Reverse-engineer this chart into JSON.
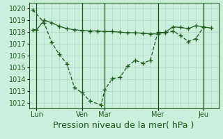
{
  "background_color": "#cceedd",
  "line_color": "#1a5c1a",
  "xlabel": "Pression niveau de la mer( hPa )",
  "xlabel_fontsize": 9,
  "ylim": [
    1011.5,
    1020.5
  ],
  "yticks": [
    1012,
    1013,
    1014,
    1015,
    1016,
    1017,
    1018,
    1019,
    1020
  ],
  "xlim": [
    0,
    25
  ],
  "xtick_labels": [
    "Lun",
    "Ven",
    "Mar",
    "Mer",
    "Jeu"
  ],
  "xtick_positions": [
    1,
    7,
    10,
    17,
    23
  ],
  "vline_positions": [
    1,
    7,
    10,
    17,
    23
  ],
  "line1_x": [
    0.5,
    2,
    3,
    4,
    5,
    6,
    7,
    8,
    9.5,
    10,
    11,
    12,
    13,
    14,
    15,
    16,
    17,
    18,
    19,
    20,
    21,
    22,
    23
  ],
  "line1_y": [
    1019.9,
    1018.8,
    1017.1,
    1016.1,
    1015.3,
    1013.25,
    1012.85,
    1012.15,
    1011.8,
    1013.1,
    1014.05,
    1014.15,
    1015.1,
    1015.6,
    1015.35,
    1015.6,
    1018.0,
    1017.95,
    1018.1,
    1017.7,
    1017.2,
    1017.45,
    1018.4
  ],
  "line2_x": [
    0.5,
    1,
    2,
    3,
    4,
    5,
    6,
    7,
    8,
    9,
    10,
    11,
    12,
    13,
    14,
    15,
    16,
    17,
    18,
    19,
    20,
    21,
    22,
    23,
    24
  ],
  "line2_y": [
    1018.2,
    1018.2,
    1019.0,
    1018.8,
    1018.5,
    1018.3,
    1018.2,
    1018.15,
    1018.1,
    1018.1,
    1018.05,
    1018.05,
    1018.0,
    1017.95,
    1017.95,
    1017.9,
    1017.85,
    1017.85,
    1018.0,
    1018.45,
    1018.4,
    1018.3,
    1018.55,
    1018.45,
    1018.35
  ],
  "marker": "+",
  "marker_size": 4,
  "linewidth": 0.9
}
